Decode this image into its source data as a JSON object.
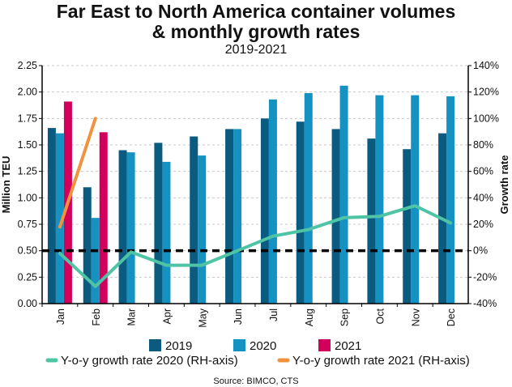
{
  "chart_data": {
    "type": "bar",
    "title": "Far East to North America container volumes",
    "title_line2": "& monthly growth rates",
    "subtitle": "2019-2021",
    "ylabel": "Million TEU",
    "y2label": "Growth rate",
    "ylim": [
      0,
      2.25
    ],
    "y2lim": [
      -40,
      140
    ],
    "yticks": [
      "0.00",
      "0.25",
      "0.50",
      "0.75",
      "1.00",
      "1.25",
      "1.50",
      "1.75",
      "2.00",
      "2.25"
    ],
    "y2ticks": [
      "-40%",
      "-20%",
      "0%",
      "20%",
      "40%",
      "60%",
      "80%",
      "100%",
      "120%",
      "140%"
    ],
    "categories": [
      "Jan",
      "Feb",
      "Mar",
      "Apr",
      "May",
      "Jun",
      "Jul",
      "Aug",
      "Sep",
      "Oct",
      "Nov",
      "Dec"
    ],
    "series": [
      {
        "name": "2019",
        "type": "bar",
        "color": "#0b5a80",
        "values": [
          1.66,
          1.1,
          1.45,
          1.52,
          1.58,
          1.65,
          1.75,
          1.72,
          1.65,
          1.56,
          1.46,
          1.61
        ]
      },
      {
        "name": "2020",
        "type": "bar",
        "color": "#1592c1",
        "values": [
          1.61,
          0.81,
          1.43,
          1.34,
          1.4,
          1.65,
          1.93,
          1.99,
          2.06,
          1.97,
          1.97,
          1.96
        ]
      },
      {
        "name": "2021",
        "type": "bar",
        "color": "#d1005b",
        "values": [
          1.91,
          1.62,
          null,
          null,
          null,
          null,
          null,
          null,
          null,
          null,
          null,
          null
        ]
      },
      {
        "name": "Y-o-y growth rate 2020 (RH-axis)",
        "type": "line",
        "axis": "right",
        "color": "#4fc4a5",
        "values": [
          -2,
          -27,
          -1,
          -11,
          -11,
          0,
          11,
          16,
          25,
          26,
          34,
          21
        ]
      },
      {
        "name": "Y-o-y growth rate 2021 (RH-axis)",
        "type": "line",
        "axis": "right",
        "color": "#f0923e",
        "values": [
          18,
          100,
          null,
          null,
          null,
          null,
          null,
          null,
          null,
          null,
          null,
          null
        ]
      }
    ],
    "grid": true,
    "reference_line": "0%",
    "legend_position": "bottom",
    "source": "Source: BIMCO, CTS"
  }
}
